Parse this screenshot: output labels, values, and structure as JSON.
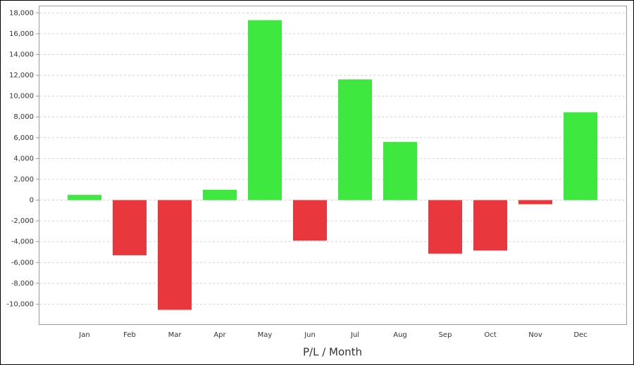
{
  "chart_data": {
    "type": "bar",
    "x_label": "P/L / Month",
    "categories": [
      "Jan",
      "Feb",
      "Mar",
      "Apr",
      "May",
      "Jun",
      "Jul",
      "Aug",
      "Sep",
      "Oct",
      "Nov",
      "Dec"
    ],
    "values": [
      500,
      -5300,
      -10550,
      1000,
      17300,
      -3900,
      11600,
      5600,
      -5150,
      -4850,
      -400,
      8450
    ],
    "positive_color": "#3ee83e",
    "negative_color": "#e8383e",
    "ylim": [
      -12000,
      18700
    ],
    "yticks": [
      {
        "value": -10000,
        "label": "-10,000"
      },
      {
        "value": -8000,
        "label": "-8,000"
      },
      {
        "value": -6000,
        "label": "-6,000"
      },
      {
        "value": -4000,
        "label": "-4,000"
      },
      {
        "value": -2000,
        "label": "-2,000"
      },
      0,
      {
        "value": 2000,
        "label": "2,000"
      },
      {
        "value": 4000,
        "label": "4,000"
      },
      {
        "value": 6000,
        "label": "6,000"
      },
      {
        "value": 8000,
        "label": "8,000"
      },
      {
        "value": 10000,
        "label": "10,000"
      },
      {
        "value": 12000,
        "label": "12,000"
      },
      {
        "value": 14000,
        "label": "14,000"
      },
      {
        "value": 16000,
        "label": "16,000"
      },
      {
        "value": 18000,
        "label": "18,000"
      }
    ],
    "grid": true
  }
}
